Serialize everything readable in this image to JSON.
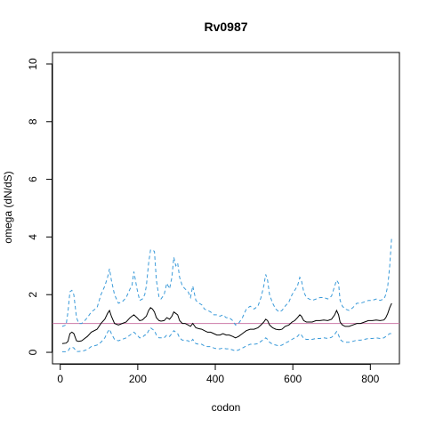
{
  "chart_data": {
    "type": "line",
    "title": "Rv0987",
    "xlabel": "codon",
    "ylabel": "omega (dN/dS)",
    "xlim": [
      -20,
      875
    ],
    "ylim": [
      -0.4,
      10.4
    ],
    "x_ticks": [
      0,
      200,
      400,
      600,
      800
    ],
    "y_ticks": [
      0,
      2,
      4,
      6,
      8,
      10
    ],
    "reference_line": {
      "y": 1,
      "color": "#cc79a7"
    },
    "grid": false,
    "legend": "none",
    "series": [
      {
        "role": "upper",
        "color": "#3a9ad9",
        "dash": true,
        "x": [
          5,
          15,
          20,
          25,
          30,
          35,
          42,
          48,
          55,
          60,
          70,
          80,
          95,
          105,
          115,
          122,
          127,
          132,
          140,
          150,
          160,
          170,
          180,
          185,
          190,
          198,
          205,
          212,
          218,
          222,
          228,
          233,
          238,
          243,
          248,
          255,
          260,
          268,
          275,
          282,
          288,
          293,
          298,
          303,
          308,
          315,
          322,
          330,
          336,
          342,
          350,
          358,
          365,
          372,
          380,
          388,
          396,
          404,
          412,
          420,
          428,
          436,
          445,
          452,
          460,
          470,
          480,
          490,
          500,
          510,
          518,
          525,
          530,
          535,
          540,
          548,
          556,
          565,
          572,
          580,
          590,
          598,
          605,
          612,
          618,
          622,
          628,
          635,
          642,
          650,
          660,
          670,
          680,
          690,
          700,
          708,
          713,
          718,
          722,
          728,
          735,
          745,
          755,
          765,
          775,
          785,
          795,
          805,
          815,
          825,
          835,
          840,
          845,
          850,
          855
        ],
        "y": [
          0.9,
          0.95,
          1.4,
          2.1,
          2.15,
          2.0,
          1.2,
          1.0,
          1.0,
          1.05,
          1.2,
          1.4,
          1.55,
          2.0,
          2.3,
          2.6,
          2.9,
          2.5,
          2.0,
          1.7,
          1.75,
          1.9,
          2.2,
          2.3,
          2.8,
          2.2,
          1.8,
          1.85,
          2.0,
          2.3,
          3.1,
          3.55,
          3.55,
          3.5,
          2.5,
          1.9,
          1.85,
          2.0,
          2.4,
          2.2,
          2.6,
          3.3,
          3.0,
          3.1,
          2.6,
          2.3,
          2.2,
          2.1,
          1.9,
          2.3,
          1.8,
          1.7,
          1.65,
          1.5,
          1.45,
          1.4,
          1.3,
          1.3,
          1.25,
          1.3,
          1.2,
          1.2,
          1.1,
          0.95,
          1.0,
          1.2,
          1.5,
          1.6,
          1.5,
          1.6,
          1.9,
          2.3,
          2.7,
          2.5,
          2.0,
          1.7,
          1.5,
          1.4,
          1.45,
          1.6,
          1.75,
          2.0,
          2.15,
          2.3,
          2.6,
          2.5,
          2.1,
          1.9,
          1.85,
          1.8,
          1.85,
          1.9,
          1.9,
          1.85,
          1.95,
          2.3,
          2.5,
          2.4,
          1.8,
          1.6,
          1.5,
          1.45,
          1.55,
          1.7,
          1.7,
          1.75,
          1.8,
          1.8,
          1.85,
          1.8,
          1.85,
          2.0,
          2.3,
          3.0,
          4.0
        ]
      },
      {
        "role": "estimate",
        "color": "#000000",
        "dash": false,
        "x": [
          5,
          15,
          20,
          25,
          30,
          35,
          42,
          48,
          55,
          60,
          70,
          80,
          95,
          105,
          115,
          122,
          127,
          132,
          140,
          150,
          160,
          170,
          180,
          185,
          190,
          198,
          205,
          212,
          218,
          222,
          228,
          233,
          238,
          243,
          248,
          255,
          260,
          268,
          275,
          282,
          288,
          293,
          298,
          303,
          308,
          315,
          322,
          330,
          336,
          342,
          350,
          358,
          365,
          372,
          380,
          388,
          396,
          404,
          412,
          420,
          428,
          436,
          445,
          452,
          460,
          470,
          480,
          490,
          500,
          510,
          518,
          525,
          530,
          535,
          540,
          548,
          556,
          565,
          572,
          580,
          590,
          598,
          605,
          612,
          618,
          622,
          628,
          635,
          642,
          650,
          660,
          670,
          680,
          690,
          700,
          708,
          713,
          718,
          722,
          728,
          735,
          745,
          755,
          765,
          775,
          785,
          795,
          805,
          815,
          825,
          835,
          840,
          845,
          850,
          855
        ],
        "y": [
          0.3,
          0.32,
          0.38,
          0.65,
          0.7,
          0.65,
          0.4,
          0.38,
          0.4,
          0.45,
          0.55,
          0.7,
          0.8,
          1.0,
          1.15,
          1.35,
          1.45,
          1.25,
          1.0,
          0.95,
          1.0,
          1.05,
          1.2,
          1.25,
          1.3,
          1.2,
          1.1,
          1.12,
          1.2,
          1.25,
          1.45,
          1.55,
          1.5,
          1.4,
          1.2,
          1.1,
          1.08,
          1.1,
          1.2,
          1.15,
          1.25,
          1.4,
          1.35,
          1.3,
          1.1,
          1.0,
          1.0,
          0.95,
          0.9,
          1.0,
          0.85,
          0.82,
          0.8,
          0.75,
          0.7,
          0.7,
          0.65,
          0.6,
          0.6,
          0.65,
          0.6,
          0.6,
          0.55,
          0.5,
          0.55,
          0.65,
          0.75,
          0.8,
          0.8,
          0.85,
          0.95,
          1.05,
          1.15,
          1.1,
          0.95,
          0.85,
          0.8,
          0.78,
          0.8,
          0.9,
          0.95,
          1.05,
          1.1,
          1.2,
          1.3,
          1.25,
          1.1,
          1.05,
          1.05,
          1.05,
          1.1,
          1.1,
          1.12,
          1.1,
          1.15,
          1.3,
          1.45,
          1.3,
          1.05,
          0.95,
          0.9,
          0.9,
          0.95,
          1.0,
          1.0,
          1.05,
          1.1,
          1.1,
          1.12,
          1.1,
          1.12,
          1.2,
          1.35,
          1.55,
          1.7
        ]
      },
      {
        "role": "lower",
        "color": "#3a9ad9",
        "dash": true,
        "x": [
          5,
          15,
          20,
          25,
          30,
          35,
          42,
          48,
          55,
          60,
          70,
          80,
          95,
          105,
          115,
          122,
          127,
          132,
          140,
          150,
          160,
          170,
          180,
          185,
          190,
          198,
          205,
          212,
          218,
          222,
          228,
          233,
          238,
          243,
          248,
          255,
          260,
          268,
          275,
          282,
          288,
          293,
          298,
          303,
          308,
          315,
          322,
          330,
          336,
          342,
          350,
          358,
          365,
          372,
          380,
          388,
          396,
          404,
          412,
          420,
          428,
          436,
          445,
          452,
          460,
          470,
          480,
          490,
          500,
          510,
          518,
          525,
          530,
          535,
          540,
          548,
          556,
          565,
          572,
          580,
          590,
          598,
          605,
          612,
          618,
          622,
          628,
          635,
          642,
          650,
          660,
          670,
          680,
          690,
          700,
          708,
          713,
          718,
          722,
          728,
          735,
          745,
          755,
          765,
          775,
          785,
          795,
          805,
          815,
          825,
          835,
          840,
          845,
          850,
          855
        ],
        "y": [
          0.02,
          0.02,
          0.04,
          0.15,
          0.18,
          0.15,
          0.03,
          0.03,
          0.04,
          0.05,
          0.1,
          0.2,
          0.25,
          0.35,
          0.5,
          0.7,
          0.8,
          0.65,
          0.45,
          0.4,
          0.45,
          0.5,
          0.6,
          0.65,
          0.7,
          0.6,
          0.5,
          0.52,
          0.6,
          0.6,
          0.75,
          0.85,
          0.8,
          0.75,
          0.6,
          0.5,
          0.5,
          0.5,
          0.6,
          0.55,
          0.65,
          0.75,
          0.7,
          0.65,
          0.5,
          0.42,
          0.42,
          0.4,
          0.35,
          0.45,
          0.3,
          0.28,
          0.28,
          0.22,
          0.2,
          0.2,
          0.15,
          0.12,
          0.12,
          0.15,
          0.12,
          0.12,
          0.08,
          0.05,
          0.08,
          0.15,
          0.22,
          0.28,
          0.28,
          0.3,
          0.38,
          0.45,
          0.5,
          0.45,
          0.35,
          0.28,
          0.25,
          0.22,
          0.25,
          0.32,
          0.38,
          0.45,
          0.5,
          0.55,
          0.65,
          0.6,
          0.48,
          0.45,
          0.45,
          0.45,
          0.48,
          0.48,
          0.5,
          0.48,
          0.52,
          0.62,
          0.72,
          0.6,
          0.45,
          0.38,
          0.35,
          0.35,
          0.38,
          0.42,
          0.42,
          0.45,
          0.48,
          0.48,
          0.5,
          0.48,
          0.5,
          0.55,
          0.6,
          0.65,
          0.65
        ]
      }
    ]
  }
}
